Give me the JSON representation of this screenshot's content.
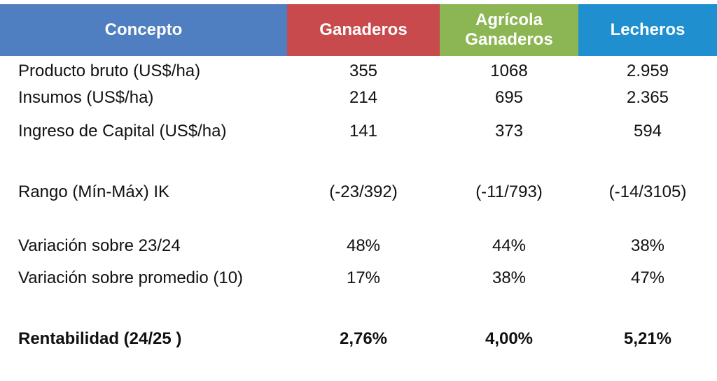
{
  "table": {
    "header": [
      "Concepto",
      "Ganaderos",
      "Agrícola Ganaderos",
      "Lecheros"
    ],
    "rows": [
      [
        "Producto bruto (US$/ha)",
        "355",
        "1068",
        "2.959"
      ],
      [
        "Insumos (US$/ha)",
        "214",
        "695",
        "2.365"
      ],
      [
        "Ingreso de Capital (US$/ha)",
        "141",
        "373",
        "594"
      ],
      [
        "Rango (Mín-Máx) IK",
        "(-23/392)",
        "(-11/793)",
        "(-14/3105)"
      ],
      [
        "Variación sobre 23/24",
        "48%",
        "44%",
        "38%"
      ],
      [
        "Variación sobre promedio (10)",
        "17%",
        "38%",
        "47%"
      ],
      [
        "Rentabilidad (24/25 )",
        "2,76%",
        "4,00%",
        "5,21%"
      ]
    ]
  }
}
